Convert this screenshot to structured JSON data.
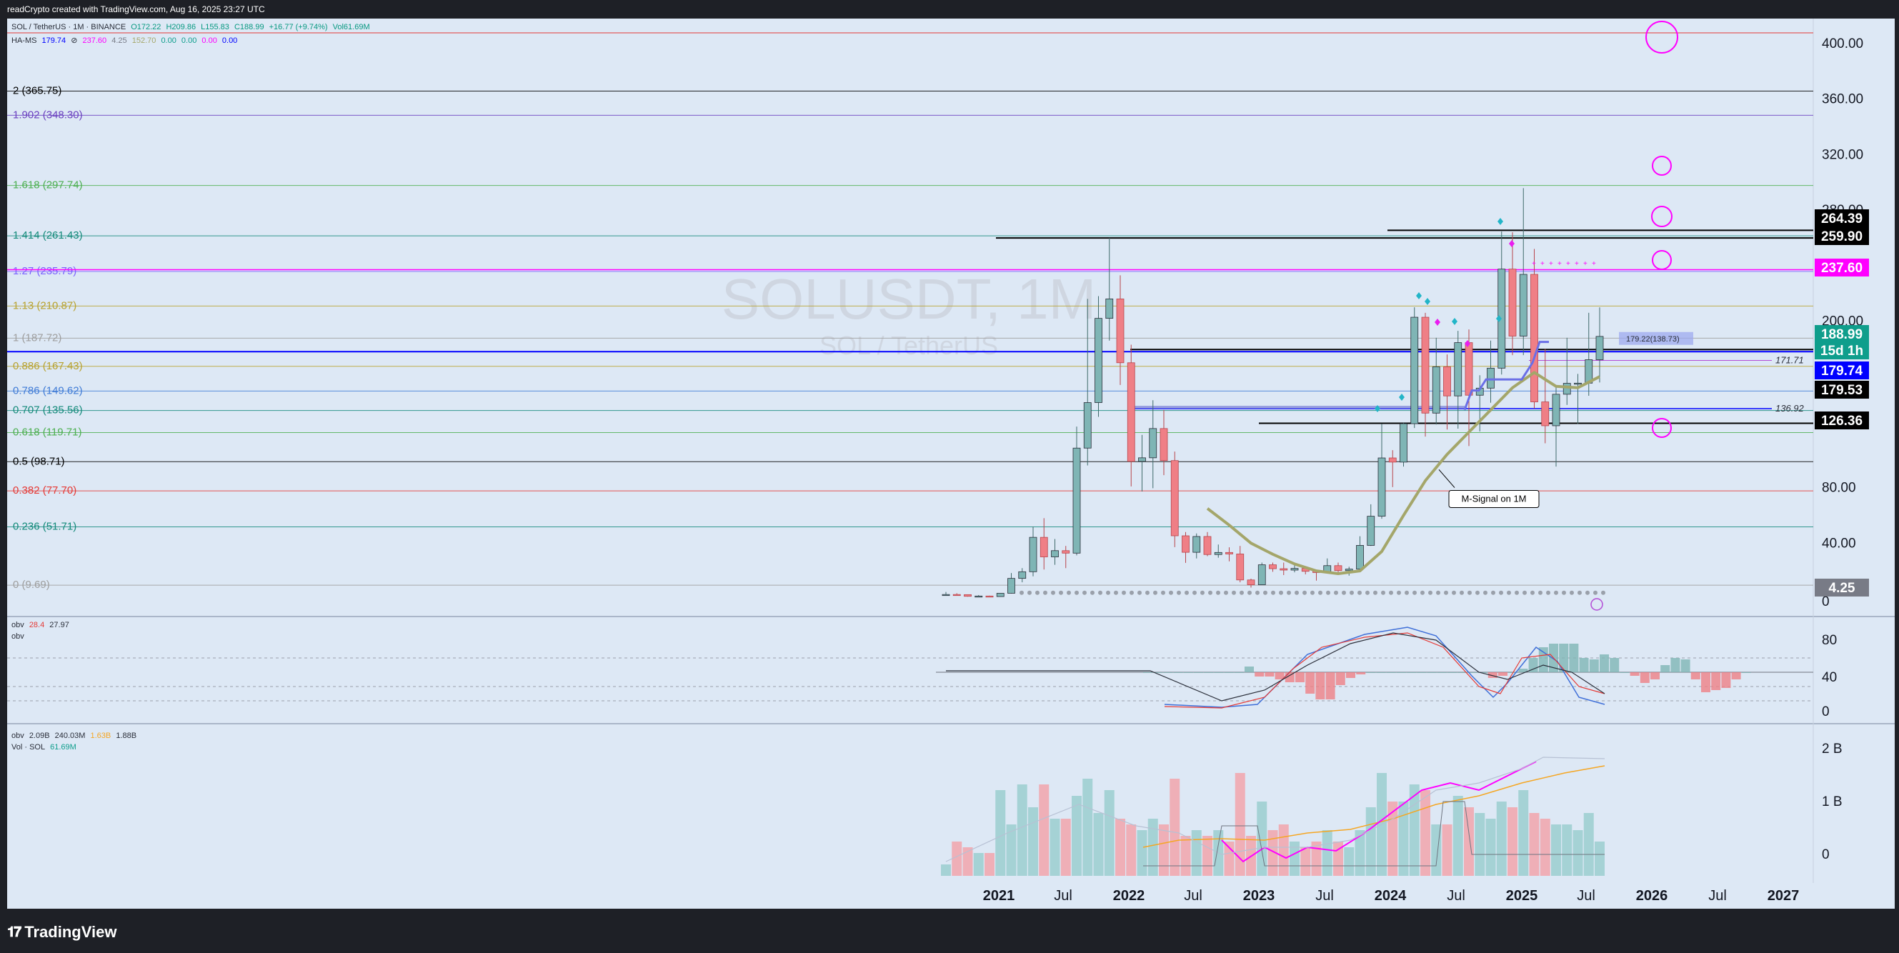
{
  "header": {
    "credit": "readCrypto created with TradingView.com, Aug 16, 2025 23:27 UTC"
  },
  "legend": {
    "symbol_line": [
      "SOL / TetherUS · 1M · BINANCE",
      "O172.22",
      "H209.86",
      "L155.83",
      "C188.99",
      "+16.77 (+9.74%)",
      "Vol61.69M"
    ],
    "indicator_line": [
      "HA-MS",
      "179.74",
      "⊘",
      "237.60",
      "4.25",
      "152.70",
      "0.00",
      "0.00",
      "0.00",
      "0.00"
    ],
    "obv_rsi": [
      "obv",
      "28.4",
      "27.97"
    ],
    "obv_rsi_sub": "obv",
    "obv_vol": [
      "obv",
      "2.09B",
      "240.03M",
      "1.63B",
      "1.88B"
    ],
    "vol_line": [
      "Vol · SOL",
      "61.69M"
    ]
  },
  "watermark": {
    "symbol": "SOLUSDT, 1M",
    "name": "SOL / TetherUS"
  },
  "colors": {
    "chart_bg": "#dde8f5",
    "up": "#7fb5b5",
    "down": "#ef7f86",
    "accent_magenta": "#ff00ff",
    "signal": "#a4a66a",
    "teal_badge": "#0f9e8c",
    "blue_badge": "#0000ff"
  },
  "price_axis": {
    "ticks": [
      "400.00",
      "360.00",
      "320.00",
      "280.00",
      "200.00",
      "80.00",
      "40.00",
      "0"
    ],
    "badges": [
      {
        "label": "264.39",
        "bg": "#000000",
        "fg": "#ffffff"
      },
      {
        "label": "259.90",
        "bg": "#000000",
        "fg": "#ffffff"
      },
      {
        "label": "237.60",
        "bg": "#ff00ff",
        "fg": "#ffffff"
      },
      {
        "label": "188.99",
        "bg": "#0f9e8c",
        "fg": "#ffffff"
      },
      {
        "label": "15d 1h",
        "bg": "#0f9e8c",
        "fg": "#ffffff"
      },
      {
        "label": "179.74",
        "bg": "#0000ff",
        "fg": "#ffffff"
      },
      {
        "label": "179.53",
        "bg": "#000000",
        "fg": "#ffffff"
      },
      {
        "label": "126.36",
        "bg": "#000000",
        "fg": "#ffffff"
      },
      {
        "label": "4.25",
        "bg": "#787b86",
        "fg": "#ffffff"
      }
    ]
  },
  "fib_levels": [
    {
      "label": "2 (365.75)",
      "color": "#000000"
    },
    {
      "label": "1.902 (348.30)",
      "color": "#6a3fbf"
    },
    {
      "label": "1.618 (297.74)",
      "color": "#4caf50"
    },
    {
      "label": "1.414 (261.43)",
      "color": "#138a7a"
    },
    {
      "label": "1.27 (235.79)",
      "color": "#7b61ff"
    },
    {
      "label": "1.13 (210.87)",
      "color": "#b8a22e"
    },
    {
      "label": "1 (187.72)",
      "color": "#9e9e9e"
    },
    {
      "label": "0.886 (167.43)",
      "color": "#b8a22e"
    },
    {
      "label": "0.786 (149.62)",
      "color": "#3f7bd6"
    },
    {
      "label": "0.707 (135.56)",
      "color": "#138a7a"
    },
    {
      "label": "0.618 (119.71)",
      "color": "#4caf50"
    },
    {
      "label": "0.5 (98.71)",
      "color": "#000000"
    },
    {
      "label": "0.382 (77.70)",
      "color": "#e53935"
    },
    {
      "label": "0.236 (51.71)",
      "color": "#138a7a"
    },
    {
      "label": "0 (9.69)",
      "color": "#9e9e9e"
    }
  ],
  "annotations": {
    "signal_label": "M-Signal on 1M",
    "level_171": "171.71",
    "level_136": "136.92",
    "hl_box": "179.22(138.73)"
  },
  "osc_axis": [
    "80",
    "40",
    "0"
  ],
  "vol_axis": [
    "2 B",
    "1 B",
    "0"
  ],
  "time_axis": [
    "2021",
    "Jul",
    "2022",
    "Jul",
    "2023",
    "Jul",
    "2024",
    "Jul",
    "2025",
    "Jul",
    "2026",
    "Jul",
    "2027"
  ],
  "footer": {
    "logo": "TradingView"
  },
  "chart_data": {
    "type": "candlestick",
    "title": "SOLUSDT, 1M",
    "ylabel": "",
    "series_note": "",
    "ylim": [
      -10,
      405
    ],
    "categories": [
      "2020-08",
      "2020-09",
      "2020-10",
      "2020-11",
      "2020-12",
      "2021-01",
      "2021-02",
      "2021-03",
      "2021-04",
      "2021-05",
      "2021-06",
      "2021-07",
      "2021-08",
      "2021-09",
      "2021-10",
      "2021-11",
      "2021-12",
      "2022-01",
      "2022-02",
      "2022-03",
      "2022-04",
      "2022-05",
      "2022-06",
      "2022-07",
      "2022-08",
      "2022-09",
      "2022-10",
      "2022-11",
      "2022-12",
      "2023-01",
      "2023-02",
      "2023-03",
      "2023-04",
      "2023-05",
      "2023-06",
      "2023-07",
      "2023-08",
      "2023-09",
      "2023-10",
      "2023-11",
      "2023-12",
      "2024-01",
      "2024-02",
      "2024-03",
      "2024-04",
      "2024-05",
      "2024-06",
      "2024-07",
      "2024-08",
      "2024-09",
      "2024-10",
      "2024-11",
      "2024-12",
      "2025-01",
      "2025-02",
      "2025-03",
      "2025-04",
      "2025-05",
      "2025-06",
      "2025-07",
      "2025-08"
    ],
    "ohlc": [
      [
        2.8,
        4.8,
        2.2,
        3.0
      ],
      [
        3.0,
        3.9,
        2.5,
        2.9
      ],
      [
        2.9,
        3.1,
        1.4,
        1.7
      ],
      [
        1.7,
        2.6,
        1.5,
        1.9
      ],
      [
        1.9,
        2.2,
        1.3,
        1.5
      ],
      [
        1.5,
        4.1,
        1.4,
        3.9
      ],
      [
        3.9,
        18.5,
        3.7,
        14.6
      ],
      [
        14.6,
        22,
        11.8,
        19.4
      ],
      [
        19.4,
        52,
        16.1,
        44.2
      ],
      [
        44.2,
        58,
        21,
        30.1
      ],
      [
        30.1,
        43,
        24.4,
        34.6
      ],
      [
        34.6,
        38,
        22,
        32.8
      ],
      [
        32.8,
        124,
        31.2,
        108.5
      ],
      [
        108.5,
        216,
        96,
        141.3
      ],
      [
        141.3,
        218,
        131,
        202
      ],
      [
        202,
        260,
        186,
        216
      ],
      [
        216,
        233,
        154,
        170
      ],
      [
        170,
        183,
        80.9,
        98.9
      ],
      [
        98.9,
        118,
        77.2,
        101.5
      ],
      [
        101.5,
        143,
        79.6,
        122.6
      ],
      [
        122.6,
        136,
        89,
        99.5
      ],
      [
        99.5,
        106,
        37.1,
        45.3
      ],
      [
        45.3,
        48,
        25.8,
        33.4
      ],
      [
        33.4,
        47,
        29,
        44.8
      ],
      [
        44.8,
        48,
        30.6,
        31.8
      ],
      [
        31.8,
        39,
        29.5,
        33.3
      ],
      [
        33.3,
        37,
        26.9,
        32.2
      ],
      [
        32.2,
        38,
        11.8,
        13.5
      ],
      [
        13.5,
        14.4,
        8.0,
        10.0
      ],
      [
        10.0,
        26,
        9.9,
        24.4
      ],
      [
        24.4,
        26,
        19.4,
        21.6
      ],
      [
        21.6,
        26,
        17.0,
        20.6
      ],
      [
        20.6,
        25,
        19.0,
        21.8
      ],
      [
        21.8,
        22,
        17.5,
        19.7
      ],
      [
        19.7,
        20.5,
        13,
        18.8
      ],
      [
        18.8,
        29,
        18.5,
        23.8
      ],
      [
        23.8,
        26,
        18.8,
        20.2
      ],
      [
        20.2,
        23,
        16.6,
        21.3
      ],
      [
        21.3,
        45,
        20.9,
        38.4
      ],
      [
        38.4,
        68,
        38,
        59.4
      ],
      [
        59.4,
        126,
        57.6,
        101.4
      ],
      [
        101.4,
        107,
        80.4,
        98.4
      ],
      [
        98.4,
        127,
        95.2,
        126.1
      ],
      [
        126.1,
        210,
        123,
        202.8
      ],
      [
        202.8,
        206,
        116.8,
        133.7
      ],
      [
        133.7,
        188,
        125.5,
        167.1
      ],
      [
        167.1,
        176,
        121.9,
        146.1
      ],
      [
        146.1,
        193,
        122.5,
        184.5
      ],
      [
        184.5,
        194,
        110,
        146.6
      ],
      [
        146.6,
        161,
        120.5,
        151.7
      ],
      [
        151.7,
        186,
        141.2,
        166.1
      ],
      [
        166.1,
        264.6,
        161.5,
        237.5
      ],
      [
        237.5,
        264,
        175.5,
        189.2
      ],
      [
        189.2,
        295.8,
        175.5,
        233.7
      ],
      [
        233.7,
        252,
        137,
        141.8
      ],
      [
        141.8,
        180,
        112,
        124.6
      ],
      [
        124.6,
        153,
        95.2,
        147.3
      ],
      [
        147.3,
        188,
        139.6,
        155.2
      ],
      [
        155.2,
        162,
        126,
        155.3
      ],
      [
        155.3,
        206,
        146.2,
        172.2
      ],
      [
        172.2,
        209.9,
        155.8,
        188.99
      ]
    ],
    "m_signal": [
      {
        "x": "2022-08",
        "y": 65
      },
      {
        "x": "2022-10",
        "y": 53
      },
      {
        "x": "2022-12",
        "y": 40
      },
      {
        "x": "2023-02",
        "y": 32
      },
      {
        "x": "2023-04",
        "y": 25
      },
      {
        "x": "2023-06",
        "y": 20
      },
      {
        "x": "2023-08",
        "y": 18
      },
      {
        "x": "2023-10",
        "y": 20
      },
      {
        "x": "2023-12",
        "y": 34
      },
      {
        "x": "2024-02",
        "y": 60
      },
      {
        "x": "2024-04",
        "y": 85
      },
      {
        "x": "2024-06",
        "y": 104
      },
      {
        "x": "2024-08",
        "y": 120
      },
      {
        "x": "2024-10",
        "y": 136
      },
      {
        "x": "2024-12",
        "y": 152
      },
      {
        "x": "2025-02",
        "y": 163
      },
      {
        "x": "2025-04",
        "y": 153
      },
      {
        "x": "2025-06",
        "y": 152
      },
      {
        "x": "2025-08",
        "y": 160
      }
    ],
    "horizontal_levels": [
      264.39,
      259.9,
      237.6,
      179.53,
      171.71,
      136.92,
      126.36,
      4.25
    ]
  }
}
